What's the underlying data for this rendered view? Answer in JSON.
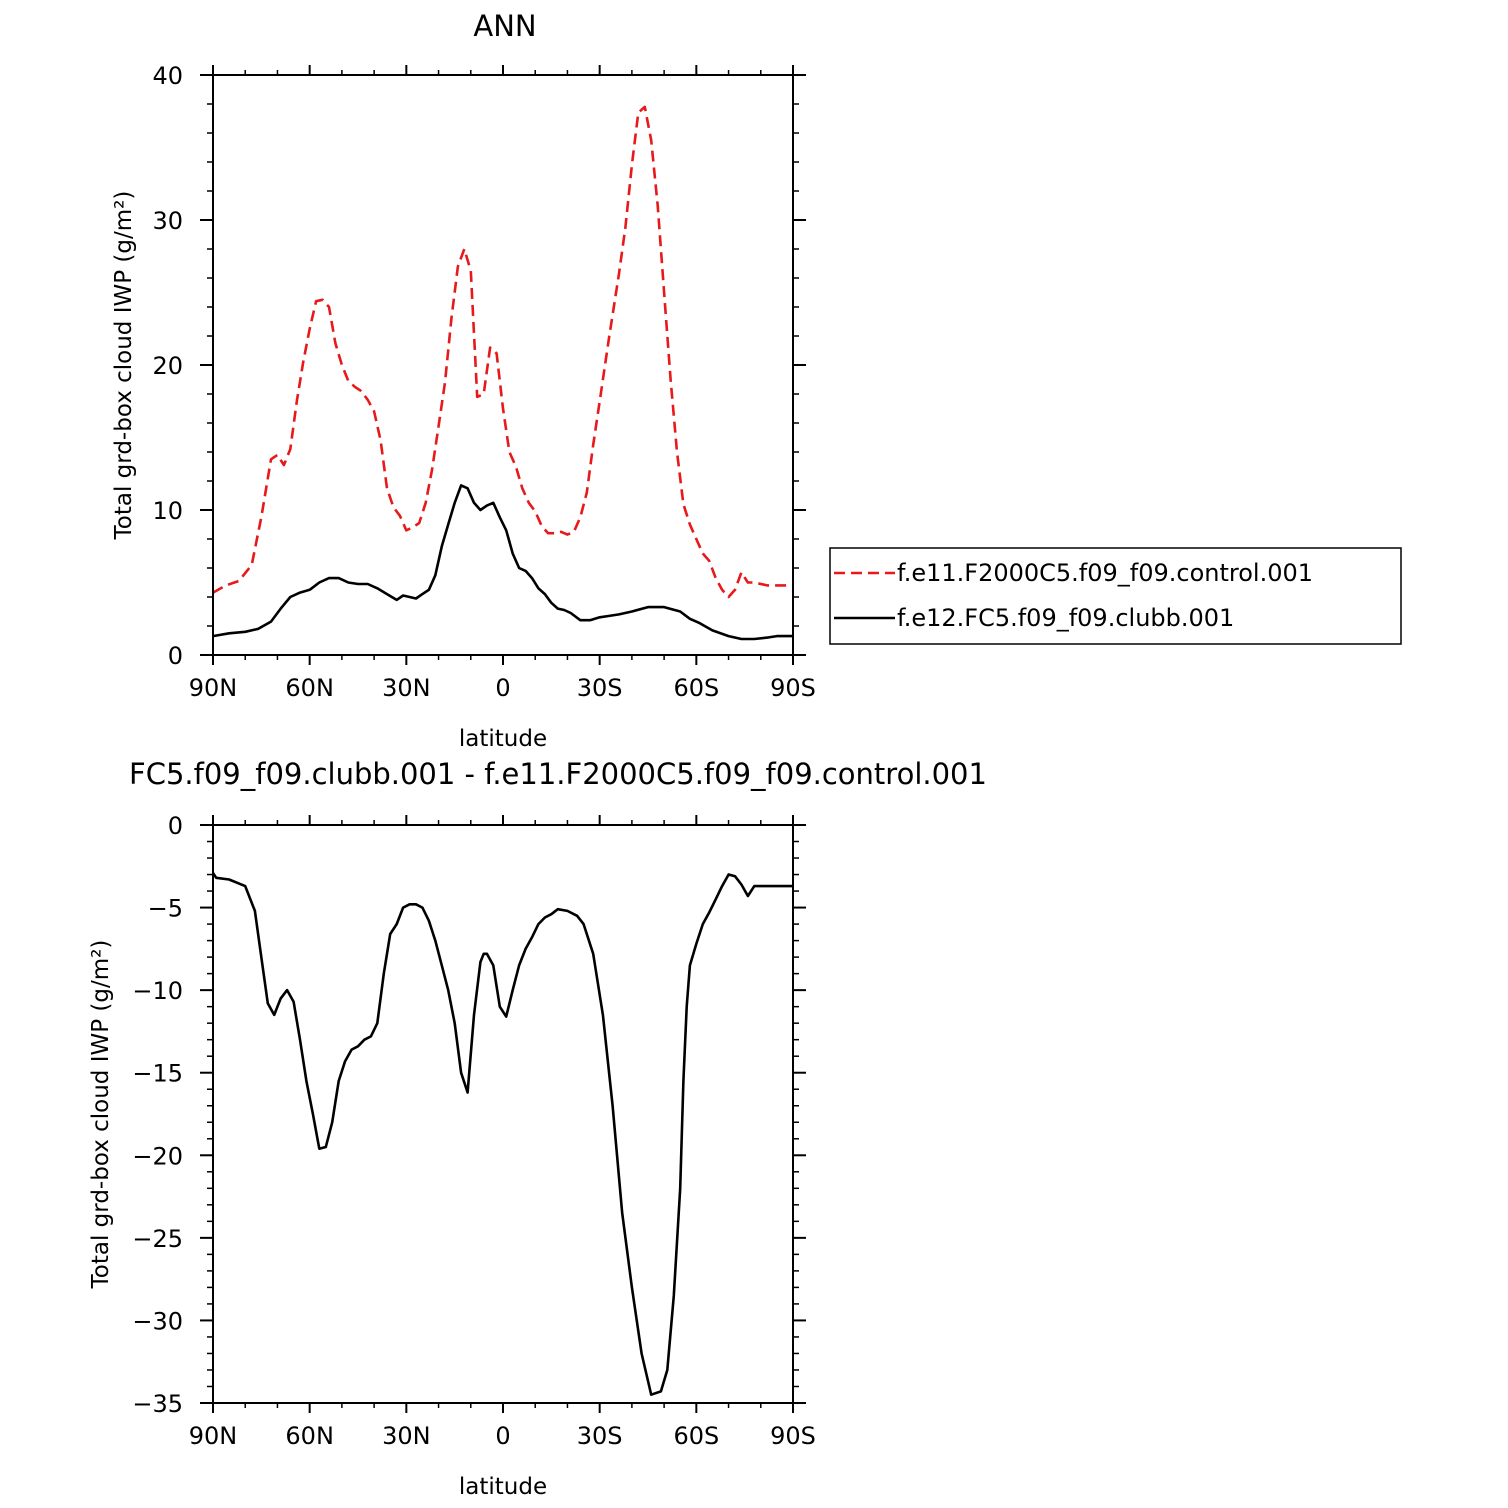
{
  "chart_data": [
    {
      "type": "line",
      "title": "ANN",
      "xlabel": "latitude",
      "ylabel": "Total grd-box cloud IWP (g/m²)",
      "xlim": [
        90,
        -90
      ],
      "ylim": [
        0,
        40
      ],
      "xticks": [
        90,
        60,
        30,
        0,
        -30,
        -60,
        -90
      ],
      "xtick_labels": [
        "90N",
        "60N",
        "30N",
        "0",
        "30S",
        "60S",
        "90S"
      ],
      "yticks": [
        0,
        10,
        20,
        30,
        40
      ],
      "ytick_labels": [
        "0",
        "10",
        "20",
        "30",
        "40"
      ],
      "legend_position": "right",
      "series": [
        {
          "name": "f.e11.F2000C5.f09_f09.control.001",
          "color": "#e8191a",
          "dash": "dashed",
          "x": [
            90,
            86,
            82,
            78,
            75,
            72,
            70,
            68,
            66,
            64,
            62,
            60,
            58,
            56,
            54,
            52,
            50,
            48,
            46,
            44,
            42,
            40,
            38,
            36,
            34,
            32,
            30,
            28,
            26,
            24,
            22,
            20,
            18,
            16,
            14,
            12,
            10,
            8,
            6,
            4,
            2,
            0,
            -2,
            -4,
            -6,
            -8,
            -10,
            -12,
            -14,
            -16,
            -18,
            -20,
            -22,
            -24,
            -26,
            -28,
            -30,
            -33,
            -36,
            -38,
            -40,
            -42,
            -44,
            -46,
            -48,
            -50,
            -52,
            -54,
            -56,
            -58,
            -60,
            -62,
            -64,
            -66,
            -68,
            -70,
            -72,
            -74,
            -76,
            -78,
            -80,
            -82,
            -84,
            -86,
            -88,
            -90
          ],
          "y": [
            4.3,
            4.8,
            5.1,
            6.2,
            9.5,
            13.5,
            13.8,
            13.1,
            14.2,
            17.5,
            20.2,
            22.5,
            24.4,
            24.5,
            24.0,
            21.5,
            20.0,
            18.9,
            18.5,
            18.2,
            17.6,
            16.8,
            14.8,
            11.5,
            10.2,
            9.6,
            8.6,
            8.8,
            9.1,
            10.5,
            12.8,
            15.8,
            18.8,
            23.2,
            26.8,
            28.0,
            26.5,
            17.8,
            18.0,
            21.2,
            20.8,
            17.0,
            14.0,
            13.0,
            11.5,
            10.5,
            9.9,
            8.9,
            8.4,
            8.4,
            8.5,
            8.3,
            8.5,
            9.5,
            11.2,
            14.5,
            17.5,
            22.0,
            26.3,
            29.5,
            33.8,
            37.4,
            37.8,
            35.5,
            31.0,
            25.0,
            19.0,
            14.0,
            10.4,
            9.0,
            8.0,
            7.0,
            6.5,
            5.3,
            4.5,
            4.0,
            4.5,
            5.7,
            5.0,
            5.0,
            4.9,
            4.8,
            4.8,
            4.8,
            4.8,
            4.8
          ]
        },
        {
          "name": "f.e12.FC5.f09_f09.clubb.001",
          "color": "#000000",
          "dash": "solid",
          "x": [
            90,
            85,
            80,
            76,
            72,
            69,
            66,
            63,
            60,
            57,
            54,
            51,
            48,
            45,
            42,
            39,
            36,
            33,
            31,
            29,
            27,
            25,
            23,
            21,
            19,
            17,
            15,
            13,
            11,
            9,
            7,
            5,
            3,
            1,
            -1,
            -3,
            -5,
            -7,
            -9,
            -11,
            -13,
            -15,
            -17,
            -19,
            -21,
            -24,
            -27,
            -30,
            -33,
            -36,
            -40,
            -45,
            -50,
            -55,
            -58,
            -61,
            -65,
            -70,
            -74,
            -78,
            -82,
            -85,
            -88,
            -90
          ],
          "y": [
            1.3,
            1.5,
            1.6,
            1.8,
            2.3,
            3.2,
            4.0,
            4.3,
            4.5,
            5.0,
            5.3,
            5.3,
            5.0,
            4.9,
            4.9,
            4.6,
            4.2,
            3.8,
            4.1,
            4.0,
            3.9,
            4.2,
            4.5,
            5.5,
            7.5,
            9.0,
            10.5,
            11.7,
            11.5,
            10.5,
            10.0,
            10.3,
            10.5,
            9.5,
            8.6,
            7.0,
            6.0,
            5.8,
            5.3,
            4.6,
            4.2,
            3.6,
            3.2,
            3.1,
            2.9,
            2.4,
            2.4,
            2.6,
            2.7,
            2.8,
            3.0,
            3.3,
            3.3,
            3.0,
            2.5,
            2.2,
            1.7,
            1.3,
            1.1,
            1.1,
            1.2,
            1.3,
            1.3,
            1.3
          ]
        }
      ]
    },
    {
      "type": "line",
      "title": "FC5.f09_f09.clubb.001 - f.e11.F2000C5.f09_f09.control.001",
      "xlabel": "latitude",
      "ylabel": "Total grd-box cloud IWP (g/m²)",
      "xlim": [
        90,
        -90
      ],
      "ylim": [
        -35,
        0
      ],
      "xticks": [
        90,
        60,
        30,
        0,
        -30,
        -60,
        -90
      ],
      "xtick_labels": [
        "90N",
        "60N",
        "30N",
        "0",
        "30S",
        "60S",
        "90S"
      ],
      "yticks": [
        0,
        -5,
        -10,
        -15,
        -20,
        -25,
        -30,
        -35
      ],
      "ytick_labels": [
        "0",
        "−5",
        "−10",
        "−15",
        "−20",
        "−25",
        "−30",
        "−35"
      ],
      "series": [
        {
          "name": "",
          "color": "#000000",
          "dash": "solid",
          "x": [
            90,
            89,
            85,
            80,
            77,
            75,
            73,
            71,
            69,
            67,
            65,
            63,
            61,
            59,
            57,
            55,
            53,
            51,
            49,
            47,
            45,
            43,
            41,
            39,
            37,
            35,
            33,
            31,
            29,
            27,
            25,
            23,
            21,
            19,
            17,
            15,
            13,
            11,
            9,
            7,
            6,
            5,
            3,
            1,
            -1,
            -3,
            -5,
            -7,
            -9,
            -11,
            -13,
            -15,
            -17,
            -20,
            -23,
            -25,
            -28,
            -31,
            -34,
            -37,
            -40,
            -43,
            -46,
            -49,
            -51,
            -53,
            -55,
            -56,
            -57,
            -58,
            -60,
            -62,
            -64,
            -66,
            -68,
            -70,
            -72,
            -74,
            -76,
            -78,
            -80,
            -82,
            -84,
            -86,
            -88,
            -90
          ],
          "y": [
            -2.9,
            -3.2,
            -3.3,
            -3.7,
            -5.2,
            -8.0,
            -10.8,
            -11.5,
            -10.5,
            -10.0,
            -10.7,
            -13.0,
            -15.5,
            -17.5,
            -19.6,
            -19.5,
            -18.0,
            -15.5,
            -14.3,
            -13.6,
            -13.4,
            -13.0,
            -12.8,
            -12.0,
            -9.0,
            -6.6,
            -6.0,
            -5.0,
            -4.8,
            -4.8,
            -5.0,
            -5.8,
            -7.0,
            -8.5,
            -10.0,
            -12.0,
            -15.0,
            -16.2,
            -11.5,
            -8.3,
            -7.8,
            -7.8,
            -8.5,
            -11.0,
            -11.6,
            -10.0,
            -8.5,
            -7.5,
            -6.8,
            -6.0,
            -5.6,
            -5.4,
            -5.1,
            -5.2,
            -5.5,
            -6.0,
            -7.8,
            -11.5,
            -17.0,
            -23.5,
            -28.0,
            -32.0,
            -34.5,
            -34.3,
            -33.0,
            -28.5,
            -22.0,
            -15.5,
            -11.0,
            -8.5,
            -7.2,
            -6.0,
            -5.3,
            -4.5,
            -3.7,
            -3.0,
            -3.1,
            -3.6,
            -4.3,
            -3.7,
            -3.7,
            -3.7,
            -3.7,
            -3.7,
            -3.7,
            -3.7
          ]
        }
      ]
    }
  ]
}
